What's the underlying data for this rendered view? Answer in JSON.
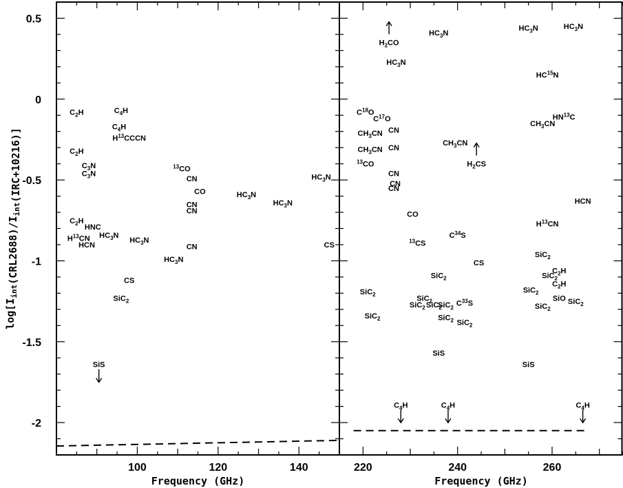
{
  "chart_data": {
    "type": "scatter",
    "ylabel": "log[I_int(CRL2688)/I_int(IRC+10216)]",
    "ylim": [
      -2.2,
      0.6
    ],
    "yticks": [
      0.5,
      0,
      -0.5,
      -1,
      -1.5,
      -2
    ],
    "ytick_labels": [
      "0.5",
      "0",
      "-0.5",
      "-1",
      "-1.5",
      "-2"
    ],
    "panels": [
      {
        "xlabel": "Frequency (GHz)",
        "xlim": [
          80,
          150
        ],
        "xticks": [
          100,
          120,
          140
        ],
        "xtick_labels": [
          "100",
          "120",
          "140"
        ],
        "dashed_line": [
          [
            80,
            -2.145
          ],
          [
            150,
            -2.11
          ]
        ],
        "points": [
          {
            "label": "C2H",
            "main": "C",
            "sub": "2",
            "post": "H",
            "x": 85,
            "y": -0.08
          },
          {
            "label": "C4H",
            "main": "C",
            "sub": "4",
            "post": "H",
            "x": 96,
            "y": -0.07
          },
          {
            "label": "C4H",
            "main": "C",
            "sub": "4",
            "post": "H",
            "x": 95.5,
            "y": -0.17
          },
          {
            "label": "H13CCCN",
            "pre": "H",
            "sup": "13",
            "post": "CCCN",
            "x": 98,
            "y": -0.24
          },
          {
            "label": "C2H",
            "main": "C",
            "sub": "2",
            "post": "H",
            "x": 85,
            "y": -0.32
          },
          {
            "label": "C3N",
            "main": "C",
            "sub": "3",
            "post": "N",
            "x": 88,
            "y": -0.41
          },
          {
            "label": "C3N",
            "main": "C",
            "sub": "3",
            "post": "N",
            "x": 88,
            "y": -0.46
          },
          {
            "label": "13CO",
            "sup": "13",
            "post": "CO",
            "x": 111,
            "y": -0.43
          },
          {
            "label": "CN",
            "main": "CN",
            "x": 113.5,
            "y": -0.49
          },
          {
            "label": "CO",
            "main": "CO",
            "x": 115.5,
            "y": -0.57
          },
          {
            "label": "HC3N",
            "main": "HC",
            "sub": "3",
            "post": "N",
            "x": 127,
            "y": -0.59
          },
          {
            "label": "HC3N",
            "main": "HC",
            "sub": "3",
            "post": "N",
            "x": 136,
            "y": -0.64
          },
          {
            "label": "HC3N",
            "main": "HC",
            "sub": "3",
            "post": "N",
            "x": 145.5,
            "y": -0.48
          },
          {
            "label": "CN",
            "main": "CN",
            "x": 113.5,
            "y": -0.65
          },
          {
            "label": "CN",
            "main": "CN",
            "x": 113.5,
            "y": -0.69
          },
          {
            "label": "C2H",
            "main": "C",
            "sub": "2",
            "post": "H",
            "x": 85,
            "y": -0.75
          },
          {
            "label": "HNC",
            "main": "HNC",
            "x": 89,
            "y": -0.79
          },
          {
            "label": "HC3N",
            "main": "HC",
            "sub": "3",
            "post": "N",
            "x": 93,
            "y": -0.84
          },
          {
            "label": "HC3N",
            "main": "HC",
            "sub": "3",
            "post": "N",
            "x": 100.5,
            "y": -0.87
          },
          {
            "label": "H13CN",
            "pre": "H",
            "sup": "13",
            "post": "CN",
            "x": 85.5,
            "y": -0.86
          },
          {
            "label": "HCN",
            "main": "HCN",
            "x": 87.5,
            "y": -0.9
          },
          {
            "label": "CN",
            "main": "CN",
            "x": 113.5,
            "y": -0.91
          },
          {
            "label": "CS",
            "main": "CS",
            "x": 147.5,
            "y": -0.9
          },
          {
            "label": "HC3N",
            "main": "HC",
            "sub": "3",
            "post": "N",
            "x": 109,
            "y": -0.99
          },
          {
            "label": "CS",
            "main": "CS",
            "x": 98,
            "y": -1.12
          },
          {
            "label": "SiC2",
            "main": "SiC",
            "sub": "2",
            "x": 96,
            "y": -1.23
          },
          {
            "label": "SiS",
            "main": "SiS",
            "x": 90.5,
            "y": -1.64,
            "arrow": "down"
          }
        ]
      },
      {
        "xlabel": "Frequency (GHz)",
        "xlim": [
          215,
          275
        ],
        "xticks": [
          220,
          240,
          260
        ],
        "xtick_labels": [
          "220",
          "240",
          "260"
        ],
        "dashed_line": [
          [
            218,
            -2.05
          ],
          [
            267,
            -2.05
          ]
        ],
        "points": [
          {
            "label": "H2CO",
            "main": "H",
            "sub": "2",
            "post": "CO",
            "x": 225.5,
            "y": 0.35,
            "arrow": "up"
          },
          {
            "label": "HC3N",
            "main": "HC",
            "sub": "3",
            "post": "N",
            "x": 236,
            "y": 0.41
          },
          {
            "label": "HC3N",
            "main": "HC",
            "sub": "3",
            "post": "N",
            "x": 255,
            "y": 0.44
          },
          {
            "label": "HC3N",
            "main": "HC",
            "sub": "3",
            "post": "N",
            "x": 264.5,
            "y": 0.45
          },
          {
            "label": "HC3N",
            "main": "HC",
            "sub": "3",
            "post": "N",
            "x": 227,
            "y": 0.23
          },
          {
            "label": "HC15N",
            "main": "HC",
            "sup": "15",
            "post": "N",
            "x": 259,
            "y": 0.15
          },
          {
            "label": "C18O",
            "main": "C",
            "sup": "18",
            "post": "O",
            "x": 220.5,
            "y": -0.08
          },
          {
            "label": "C17O",
            "main": "C",
            "sup": "17",
            "post": "O",
            "x": 224,
            "y": -0.12
          },
          {
            "label": "CH3CN",
            "main": "CH",
            "sub": "3",
            "post": "CN",
            "x": 221.5,
            "y": -0.21
          },
          {
            "label": "CN",
            "main": "CN",
            "x": 226.5,
            "y": -0.19
          },
          {
            "label": "CH3CN",
            "main": "CH",
            "sub": "3",
            "post": "CN",
            "x": 239.5,
            "y": -0.27
          },
          {
            "label": "HN13C",
            "main": "HN",
            "sup": "13",
            "post": "C",
            "x": 262.5,
            "y": -0.11
          },
          {
            "label": "CH3CN",
            "main": "CH",
            "sub": "3",
            "post": "CN",
            "x": 258,
            "y": -0.15
          },
          {
            "label": "CH3CN",
            "main": "CH",
            "sub": "3",
            "post": "CN",
            "x": 221.5,
            "y": -0.31
          },
          {
            "label": "CN",
            "main": "CN",
            "x": 226.5,
            "y": -0.3
          },
          {
            "label": "H2CS",
            "main": "H",
            "sub": "2",
            "post": "CS",
            "x": 244,
            "y": -0.4,
            "arrow": "up"
          },
          {
            "label": "13CO",
            "sup": "13",
            "post": "CO",
            "x": 220.5,
            "y": -0.4
          },
          {
            "label": "CN",
            "main": "CN",
            "x": 226.5,
            "y": -0.46
          },
          {
            "label": "CN",
            "main": "CN",
            "x": 226.8,
            "y": -0.52
          },
          {
            "label": "CN",
            "main": "CN",
            "x": 226.5,
            "y": -0.55
          },
          {
            "label": "HCN",
            "main": "HCN",
            "x": 266.5,
            "y": -0.63
          },
          {
            "label": "CO",
            "main": "CO",
            "x": 230.5,
            "y": -0.71
          },
          {
            "label": "H13CN",
            "pre": "H",
            "sup": "13",
            "post": "CN",
            "x": 259,
            "y": -0.77
          },
          {
            "label": "C34S",
            "main": "C",
            "sup": "34",
            "post": "S",
            "x": 240,
            "y": -0.84
          },
          {
            "label": "13CS",
            "sup": "13",
            "post": "CS",
            "x": 231.5,
            "y": -0.89
          },
          {
            "label": "SiC2",
            "main": "SiC",
            "sub": "2",
            "x": 258,
            "y": -0.96
          },
          {
            "label": "CS",
            "main": "CS",
            "x": 244.5,
            "y": -1.01
          },
          {
            "label": "C2H",
            "main": "C",
            "sub": "2",
            "post": "H",
            "x": 261.5,
            "y": -1.06
          },
          {
            "label": "SiC2",
            "main": "SiC",
            "sub": "2",
            "x": 236,
            "y": -1.09
          },
          {
            "label": "SiC2",
            "main": "SiC",
            "sub": "2",
            "x": 259.5,
            "y": -1.09
          },
          {
            "label": "C2H",
            "main": "C",
            "sub": "2",
            "post": "H",
            "x": 261.5,
            "y": -1.14
          },
          {
            "label": "SiC2",
            "main": "SiC",
            "sub": "2",
            "x": 221,
            "y": -1.19
          },
          {
            "label": "SiC2",
            "main": "SiC",
            "sub": "2",
            "x": 255.5,
            "y": -1.18
          },
          {
            "label": "SiC2",
            "main": "SiC",
            "sub": "2",
            "x": 233,
            "y": -1.23
          },
          {
            "label": "SiO",
            "main": "SiO",
            "x": 261.5,
            "y": -1.23
          },
          {
            "label": "SiC2",
            "main": "SiC",
            "sub": "2",
            "x": 231.5,
            "y": -1.27
          },
          {
            "label": "SiC2",
            "main": "SiC",
            "sub": "2",
            "x": 235,
            "y": -1.27
          },
          {
            "label": "SiC2",
            "main": "SiC",
            "sub": "2",
            "x": 237.5,
            "y": -1.27
          },
          {
            "label": "C33S",
            "main": "C",
            "sup": "33",
            "post": "S",
            "x": 241.5,
            "y": -1.26
          },
          {
            "label": "SiC2",
            "main": "SiC",
            "sub": "2",
            "x": 265,
            "y": -1.25
          },
          {
            "label": "SiC2",
            "main": "SiC",
            "sub": "2",
            "x": 258,
            "y": -1.28
          },
          {
            "label": "SiC2",
            "main": "SiC",
            "sub": "2",
            "x": 222,
            "y": -1.34
          },
          {
            "label": "SiC2",
            "main": "SiC",
            "sub": "2",
            "x": 237.5,
            "y": -1.35
          },
          {
            "label": "SiC2",
            "main": "SiC",
            "sub": "2",
            "x": 241.5,
            "y": -1.38
          },
          {
            "label": "SiS",
            "main": "SiS",
            "x": 236,
            "y": -1.57
          },
          {
            "label": "SiS",
            "main": "SiS",
            "x": 255,
            "y": -1.64
          },
          {
            "label": "C4H",
            "main": "C",
            "sub": "4",
            "post": "H",
            "x": 228,
            "y": -1.89,
            "arrow": "down"
          },
          {
            "label": "C4H",
            "main": "C",
            "sub": "4",
            "post": "H",
            "x": 238,
            "y": -1.89,
            "arrow": "down"
          },
          {
            "label": "C4H",
            "main": "C",
            "sub": "4",
            "post": "H",
            "x": 266.5,
            "y": -1.89,
            "arrow": "down"
          }
        ]
      }
    ]
  }
}
